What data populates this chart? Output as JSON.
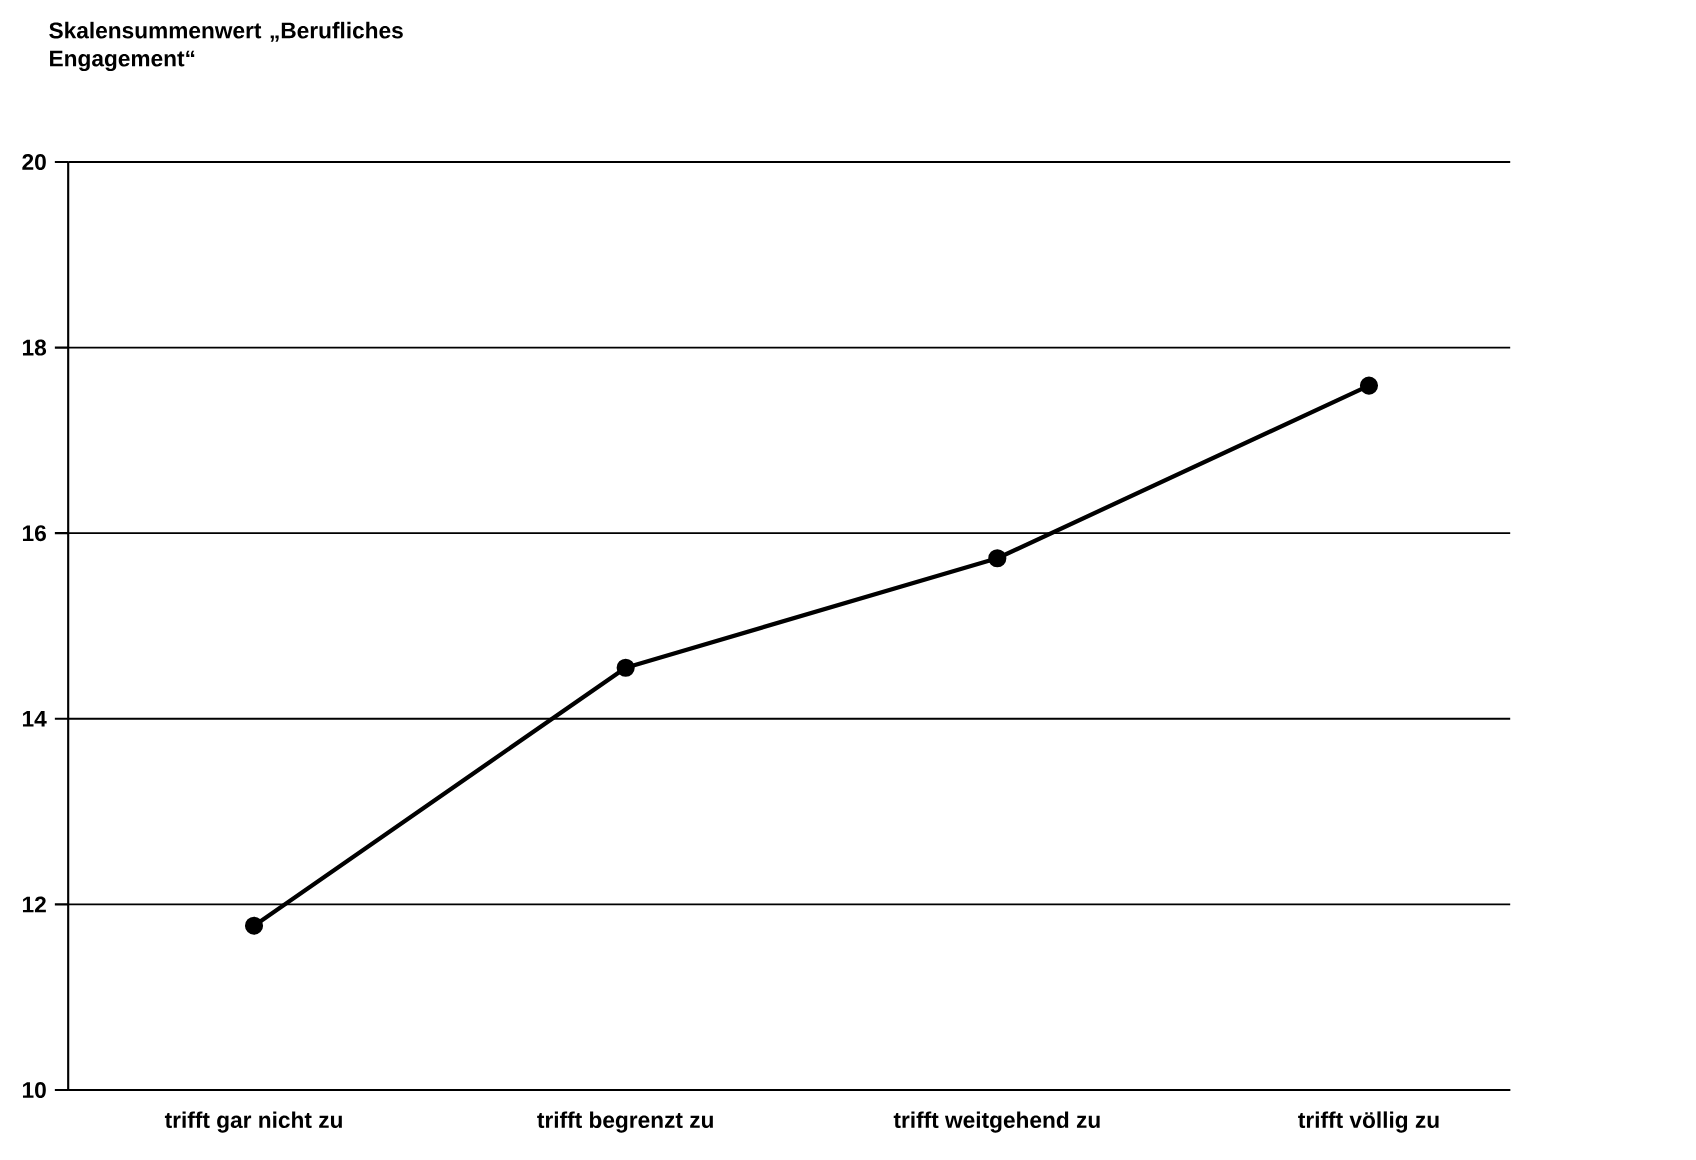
{
  "chart_data": {
    "type": "line",
    "ylabel": "Skalensummenwert „Berufliches Engagement“",
    "categories": [
      "trifft gar nicht zu",
      "trifft begrenzt zu",
      "trifft weitgehend zu",
      "trifft völlig zu"
    ],
    "values": [
      11.77,
      14.55,
      15.73,
      17.59
    ],
    "color": "#000000",
    "ylim": [
      10,
      20
    ],
    "yticks": [
      10,
      12,
      14,
      16,
      18,
      20
    ],
    "grid": "y",
    "marker": "circle",
    "line_style": "solid"
  }
}
